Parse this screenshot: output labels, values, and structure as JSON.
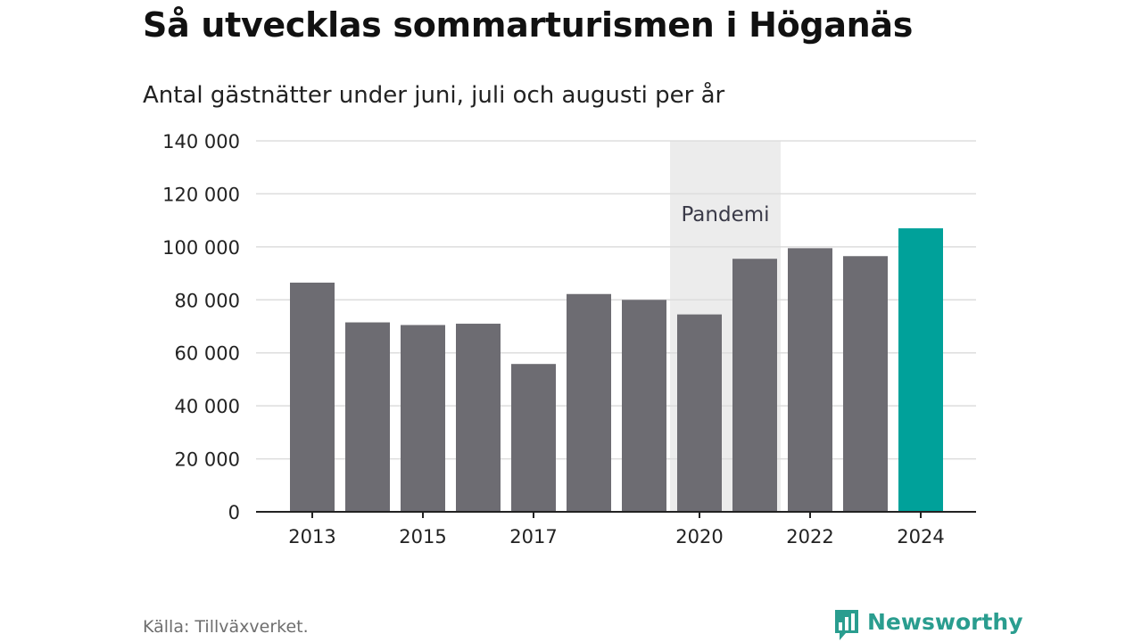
{
  "header": {
    "title": "Så utvecklas sommarturismen i Höganäs",
    "subtitle": "Antal gästnätter under juni, juli och augusti per år"
  },
  "chart_data": {
    "type": "bar",
    "categories": [
      "2013",
      "2014",
      "2015",
      "2016",
      "2017",
      "2018",
      "2019",
      "2020",
      "2021",
      "2022",
      "2023",
      "2024"
    ],
    "values": [
      86500,
      71500,
      70500,
      71000,
      55800,
      82200,
      80000,
      74500,
      95500,
      99500,
      96500,
      107000
    ],
    "x_tick_labels": [
      "2013",
      "",
      "2015",
      "",
      "2017",
      "",
      "",
      "2020",
      "",
      "2022",
      "",
      "2024"
    ],
    "y_ticks": [
      0,
      20000,
      40000,
      60000,
      80000,
      100000,
      120000,
      140000
    ],
    "y_tick_labels": [
      "0",
      "20 000",
      "40 000",
      "60 000",
      "80 000",
      "100 000",
      "120 000",
      "140 000"
    ],
    "ylim": [
      0,
      140000
    ],
    "grid": true,
    "highlight": {
      "label": "Pandemi",
      "from_category": "2020",
      "to_category": "2021"
    },
    "colors": {
      "bar": "#6d6c72",
      "bar_highlight": "#00a19a",
      "highlight_band": "#ececec",
      "grid": "#dddddd",
      "axis": "#222222"
    },
    "highlighted_bar": "2024"
  },
  "footer": {
    "source": "Källa: Tillväxverket.",
    "brand": "Newsworthy",
    "brand_icon": "bar-chart-speech-bubble-icon",
    "brand_color": "#2a9d8f"
  }
}
